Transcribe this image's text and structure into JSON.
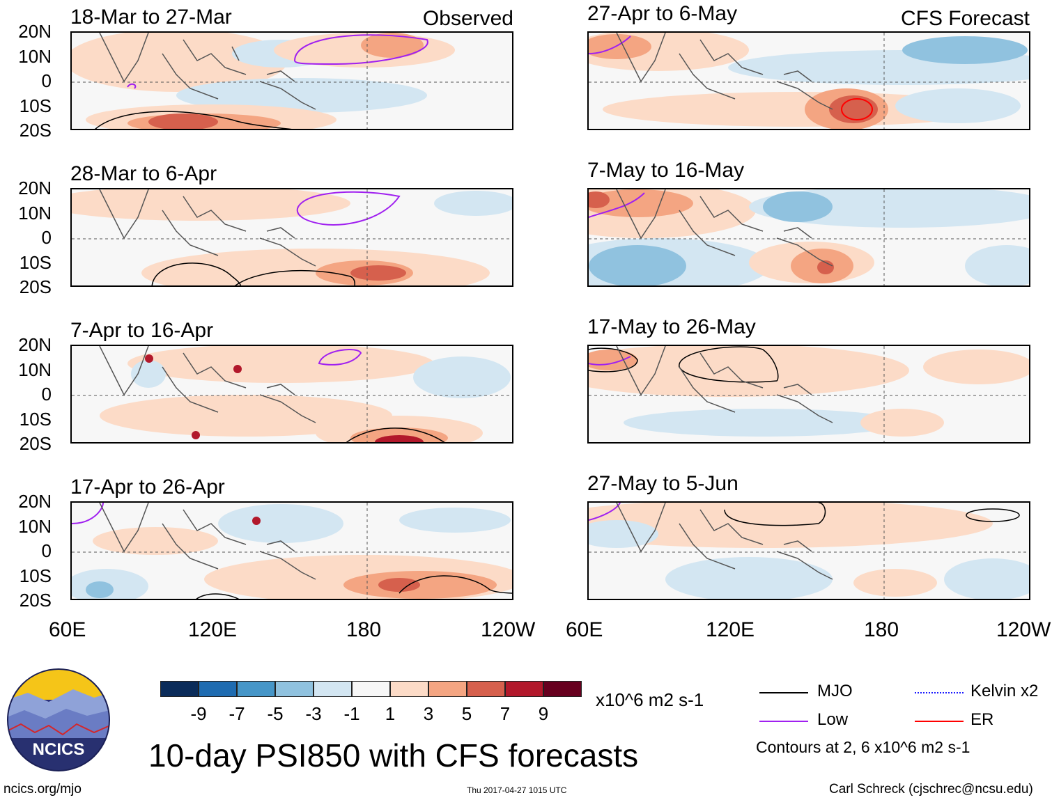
{
  "labels": {
    "observed": "Observed",
    "forecast": "CFS Forecast"
  },
  "panels_left": [
    {
      "title": "18-Mar to 27-Mar"
    },
    {
      "title": "28-Mar to 6-Apr"
    },
    {
      "title": "7-Apr to 16-Apr"
    },
    {
      "title": "17-Apr to 26-Apr"
    }
  ],
  "panels_right": [
    {
      "title": "27-Apr to 6-May"
    },
    {
      "title": "7-May to 16-May"
    },
    {
      "title": "17-May to 26-May"
    },
    {
      "title": "27-May to 5-Jun"
    }
  ],
  "lat_labels": [
    "20N",
    "10N",
    "0",
    "10S",
    "20S"
  ],
  "lon_labels": [
    "60E",
    "120E",
    "180",
    "120W"
  ],
  "colorbar": {
    "colors": [
      "#0b2c5a",
      "#1f6cb1",
      "#4696c8",
      "#90c2df",
      "#d3e6f2",
      "#f7f7f7",
      "#fcdbc7",
      "#f4a582",
      "#d6604d",
      "#b2182b",
      "#67001f"
    ],
    "ticks": [
      "-9",
      "-7",
      "-5",
      "-3",
      "-1",
      "1",
      "3",
      "5",
      "7",
      "9"
    ],
    "units": "x10^6 m2 s-1"
  },
  "legend": {
    "items": [
      {
        "label": "MJO",
        "color": "#000000"
      },
      {
        "label": "Low",
        "color": "#a020f0"
      },
      {
        "label": "Kelvin x2",
        "color": "#1a1aff"
      },
      {
        "label": "ER",
        "color": "#ff0000"
      }
    ],
    "note": "Contours at 2, 6 x10^6 m2 s-1"
  },
  "logo": {
    "text": "NCICS"
  },
  "main_title": "10-day PSI850 with CFS forecasts",
  "footer": {
    "url": "ncics.org/mjo",
    "timestamp": "Thu 2017-04-27 1015 UTC",
    "credit": "Carl Schreck (cjschrec@ncsu.edu)"
  }
}
